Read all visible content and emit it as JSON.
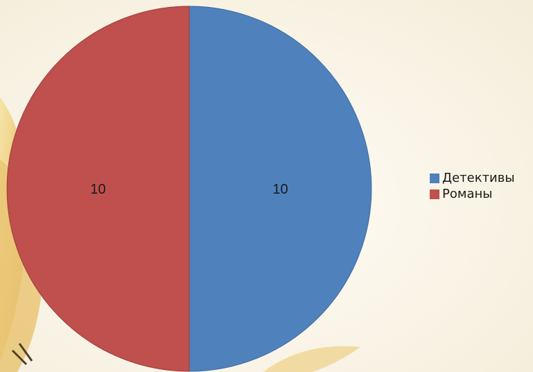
{
  "chart_data": {
    "type": "pie",
    "categories": [
      "Детективы",
      "Романы"
    ],
    "values": [
      10,
      10
    ],
    "colors": [
      "#4f81bd",
      "#c0504d"
    ],
    "data_labels": [
      "10",
      "10"
    ],
    "legend_placement": "right",
    "start_angle_deg": 0,
    "direction": "clockwise"
  }
}
